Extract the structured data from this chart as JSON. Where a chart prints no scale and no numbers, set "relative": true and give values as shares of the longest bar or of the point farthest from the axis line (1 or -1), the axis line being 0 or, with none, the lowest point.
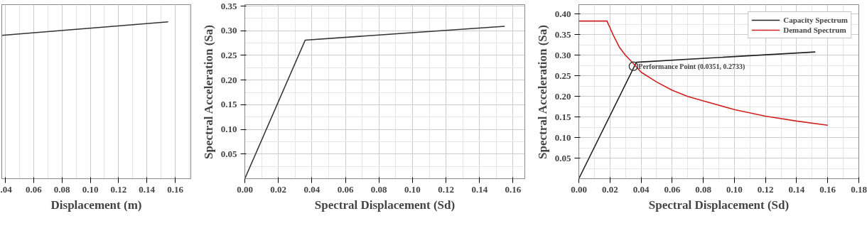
{
  "chart_data": [
    {
      "type": "line",
      "xlabel": "Displacement (m)",
      "relative": true,
      "grid": true,
      "xlim": [
        0.0375,
        0.171
      ],
      "xticks": [
        {
          "value": 0.04,
          "label": ".04"
        },
        0.06,
        0.08,
        {
          "value": 0.1,
          "label": "0.10"
        },
        0.12,
        0.14,
        0.16
      ],
      "series": [
        {
          "color": "#333333",
          "x": [
            0.0375,
            0.155
          ],
          "values": [
            0.914,
            1.0
          ]
        }
      ]
    },
    {
      "type": "line",
      "xlabel": "Spectral Displacement (Sd)",
      "ylabel": "Spectral Acceleration (Sa)",
      "grid": true,
      "xlim": [
        0,
        0.167
      ],
      "ylim": [
        0,
        0.353
      ],
      "xticks": [
        {
          "value": 0,
          "label": "0.00"
        },
        0.02,
        0.04,
        0.06,
        0.08,
        {
          "value": 0.1,
          "label": "0.10"
        },
        0.12,
        0.14,
        0.16
      ],
      "yticks": [
        0.05,
        {
          "value": 0.1,
          "label": "0.10"
        },
        0.15,
        {
          "value": 0.2,
          "label": "0.20"
        },
        0.25,
        {
          "value": 0.3,
          "label": "0.30"
        },
        0.35
      ],
      "series": [
        {
          "color": "#333333",
          "x": [
            0,
            0.036,
            0.155
          ],
          "values": [
            0,
            0.281,
            0.309
          ]
        }
      ]
    },
    {
      "type": "line",
      "xlabel": "Spectral Displacement (Sd)",
      "ylabel": "Spectral Acceleration (Sa)",
      "grid": true,
      "legend": "top right",
      "xlim": [
        0,
        0.18
      ],
      "ylim": [
        0,
        0.423
      ],
      "xticks": [
        {
          "value": 0,
          "label": "0.00"
        },
        0.02,
        0.04,
        0.06,
        0.08,
        {
          "value": 0.1,
          "label": "0.10"
        },
        0.12,
        0.14,
        0.16,
        0.18
      ],
      "yticks": [
        0.05,
        {
          "value": 0.1,
          "label": "0.10"
        },
        0.15,
        {
          "value": 0.2,
          "label": "0.20"
        },
        0.25,
        {
          "value": 0.3,
          "label": "0.30"
        },
        0.35,
        {
          "value": 0.4,
          "label": "0.40"
        }
      ],
      "annotations": [
        {
          "text": "Performance Point  (0.0351, 0.2733)",
          "x": 0.0351,
          "y": 0.2733
        }
      ],
      "series": [
        {
          "name": "Capacity Spectrum",
          "color": "#222222",
          "x": [
            0,
            0.037,
            0.152
          ],
          "values": [
            0,
            0.283,
            0.308
          ]
        },
        {
          "name": "Demand Spectrum",
          "color": "#d02020",
          "x": [
            0,
            0.0181,
            0.022,
            0.026,
            0.03,
            0.035,
            0.04,
            0.05,
            0.06,
            0.07,
            0.08,
            0.1,
            0.12,
            0.14,
            0.16
          ],
          "values": [
            0.383,
            0.383,
            0.35,
            0.32,
            0.3,
            0.28,
            0.259,
            0.235,
            0.215,
            0.2,
            0.189,
            0.168,
            0.152,
            0.14,
            0.13
          ]
        }
      ]
    }
  ]
}
